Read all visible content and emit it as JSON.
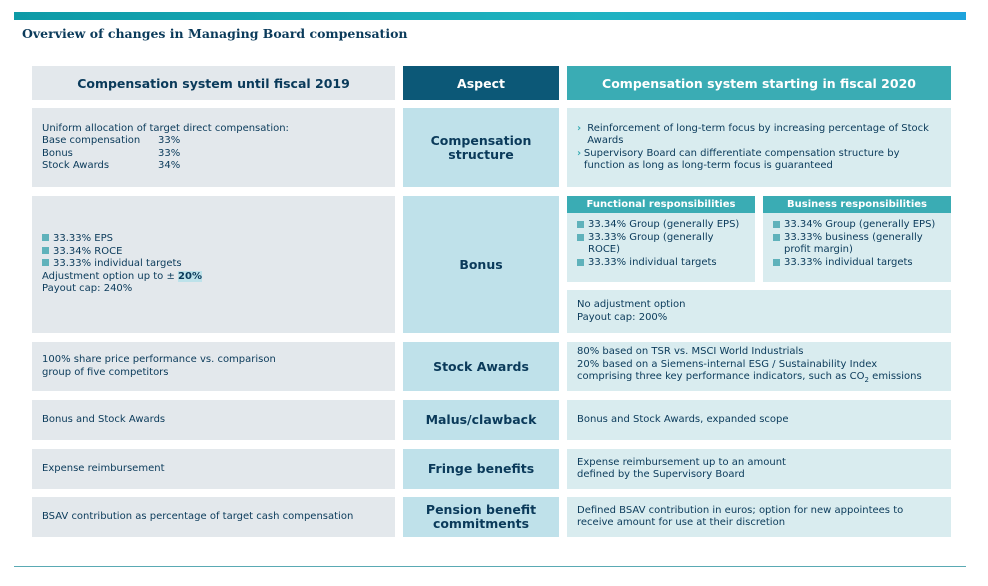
{
  "title": "Overview of changes in Managing Board compensation",
  "headers": {
    "left": "Compensation system until fiscal 2019",
    "mid": "Aspect",
    "right": "Compensation system starting in fiscal 2020"
  },
  "structure": {
    "aspect": "Compensation structure",
    "left_intro": "Uniform allocation of target direct compensation:",
    "left_items": [
      {
        "label": "Base compensation",
        "value": "33%"
      },
      {
        "label": "Bonus",
        "value": "33%"
      },
      {
        "label": "Stock Awards",
        "value": "34%"
      }
    ],
    "right_items": [
      "Reinforcement of long-term focus by increasing percentage of Stock Awards",
      "Supervisory Board can differentiate compensation structure by function as long as long-term focus is guaranteed"
    ]
  },
  "bonus": {
    "aspect": "Bonus",
    "left_items": [
      "33.33% EPS",
      "33.34% ROCE",
      "33.33% individual targets"
    ],
    "left_adjust_prefix": "Adjustment option up to ± ",
    "left_adjust_value": "20%",
    "left_cap": "Payout cap: 240%",
    "functional": {
      "header": "Functional responsibilities",
      "items": [
        "33.34% Group (generally EPS)",
        "33.33% Group (generally ROCE)",
        "33.33% individual targets"
      ]
    },
    "business": {
      "header": "Business responsibilities",
      "items": [
        "33.34% Group (generally EPS)",
        "33.33% business (generally profit margin)",
        "33.33% individual targets"
      ]
    },
    "right_lines": [
      "No adjustment option",
      "Payout cap: 200%"
    ]
  },
  "stock": {
    "aspect": "Stock Awards",
    "left": "100% share price performance vs. comparison group of five competitors",
    "right_lines": [
      "80% based on TSR vs. MSCI World Industrials",
      "20% based on a Siemens-internal ESG / Sustainability Index",
      "comprising three key performance indicators, such as CO",
      "2",
      " emissions"
    ]
  },
  "malus": {
    "aspect": "Malus/clawback",
    "left": "Bonus and Stock Awards",
    "right": "Bonus and Stock Awards, expanded scope"
  },
  "fringe": {
    "aspect": "Fringe benefits",
    "left": "Expense reimbursement",
    "right": "Expense reimbursement up to an amount defined by the Supervisory Board"
  },
  "pension": {
    "aspect": "Pension benefit commitments",
    "left": "BSAV contribution as percentage of target cash compensation",
    "right": "Defined BSAV contribution in euros; option for new appointees to receive amount for use at their discretion"
  },
  "colors": {
    "accent_teal": "#3aacb4",
    "aspect_header": "#0c5877",
    "aspect_cell": "#bfe1ea",
    "left_cell": "#e3e8ec",
    "right_cell": "#d9ecef",
    "text": "#0a3a5a"
  }
}
